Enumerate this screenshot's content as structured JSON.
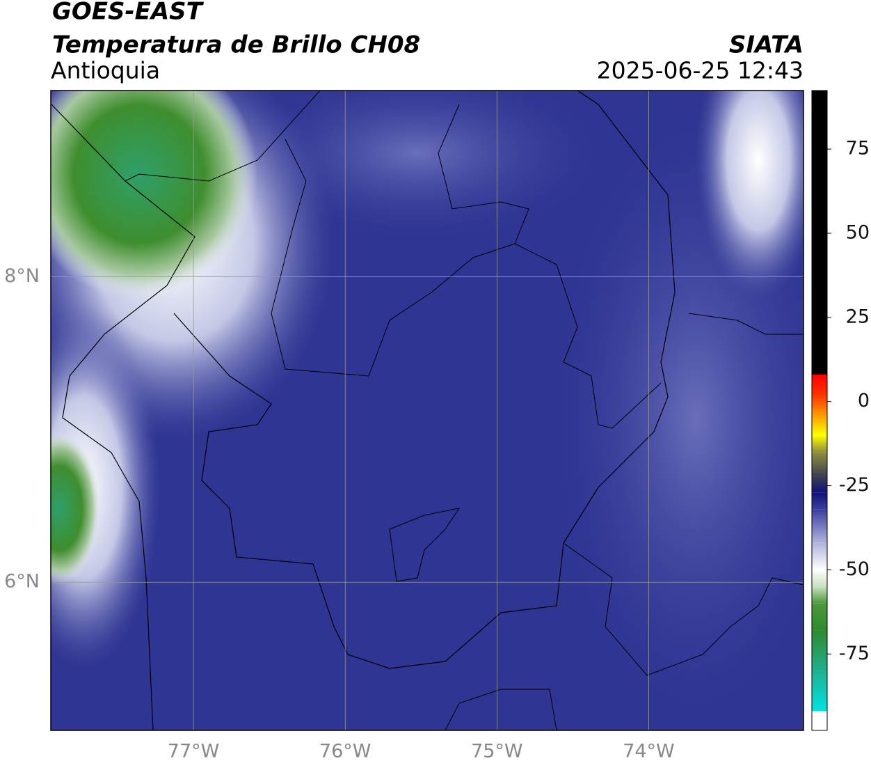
{
  "header": {
    "title": "GOES-EAST",
    "subtitle": "Temperatura de Brillo CH08",
    "region": "Antioquia",
    "source": "SIATA",
    "timestamp": "2025-06-25 12:43"
  },
  "map": {
    "xlim": [
      -77.94,
      -72.98
    ],
    "ylim": [
      5.03,
      9.22
    ],
    "xticks": [
      {
        "value": -77,
        "label": "77°W"
      },
      {
        "value": -76,
        "label": "76°W"
      },
      {
        "value": -75,
        "label": "75°W"
      },
      {
        "value": -74,
        "label": "74°W"
      }
    ],
    "yticks": [
      {
        "value": 8,
        "label": "8°N"
      },
      {
        "value": 6,
        "label": "6°N"
      }
    ]
  },
  "colorbar": {
    "lim": [
      -97.7,
      92.4
    ],
    "ticks": [
      75,
      50,
      25,
      0,
      -25,
      -50,
      -75
    ],
    "stops": [
      {
        "value": -97.7,
        "color": "#ffffff"
      },
      {
        "value": -92,
        "color": "#ffffff"
      },
      {
        "value": -92,
        "color": "#00e5e0"
      },
      {
        "value": -80,
        "color": "#20b090"
      },
      {
        "value": -68,
        "color": "#2e8b2e"
      },
      {
        "value": -60,
        "color": "#4a9a3a"
      },
      {
        "value": -55,
        "color": "#c8e0c0"
      },
      {
        "value": -50,
        "color": "#ffffff"
      },
      {
        "value": -42,
        "color": "#b0b4dc"
      },
      {
        "value": -32,
        "color": "#3a3f9e"
      },
      {
        "value": -27,
        "color": "#10107a"
      },
      {
        "value": -22,
        "color": "#404050"
      },
      {
        "value": -15,
        "color": "#909040"
      },
      {
        "value": -10,
        "color": "#ffff00"
      },
      {
        "value": -4,
        "color": "#ff9900"
      },
      {
        "value": 2,
        "color": "#ff3300"
      },
      {
        "value": 8,
        "color": "#ff0000"
      },
      {
        "value": 8,
        "color": "#000000"
      },
      {
        "value": 92.4,
        "color": "#000000"
      }
    ]
  }
}
